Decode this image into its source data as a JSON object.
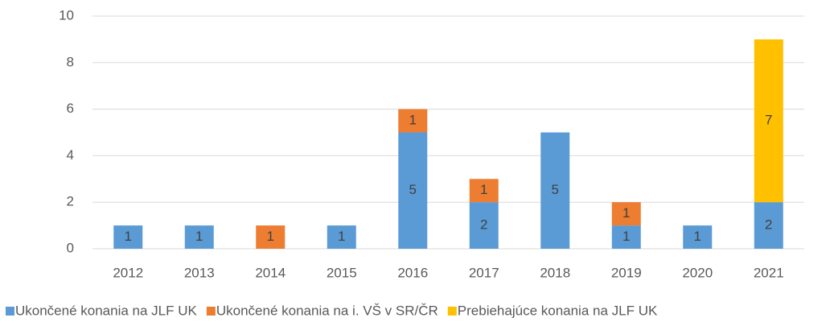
{
  "chart_data": {
    "type": "stacked_bar",
    "categories": [
      "2012",
      "2013",
      "2014",
      "2015",
      "2016",
      "2017",
      "2018",
      "2019",
      "2020",
      "2021"
    ],
    "series": [
      {
        "name": "Ukončené konania na JLF UK",
        "color": "#5b9bd5",
        "values": [
          1,
          1,
          null,
          1,
          5,
          2,
          5,
          1,
          1,
          2
        ]
      },
      {
        "name": "Ukončené konania na i. VŠ v SR/ČR",
        "color": "#ed7d31",
        "values": [
          null,
          null,
          1,
          null,
          1,
          1,
          null,
          1,
          null,
          null
        ]
      },
      {
        "name": "Prebiehajúce konania na JLF UK",
        "color": "#ffc000",
        "values": [
          null,
          null,
          null,
          null,
          null,
          null,
          null,
          null,
          null,
          7
        ]
      }
    ],
    "ylim": [
      0,
      10
    ],
    "yticks": [
      0,
      2,
      4,
      6,
      8,
      10
    ],
    "grid": true,
    "legend": "bottom"
  }
}
